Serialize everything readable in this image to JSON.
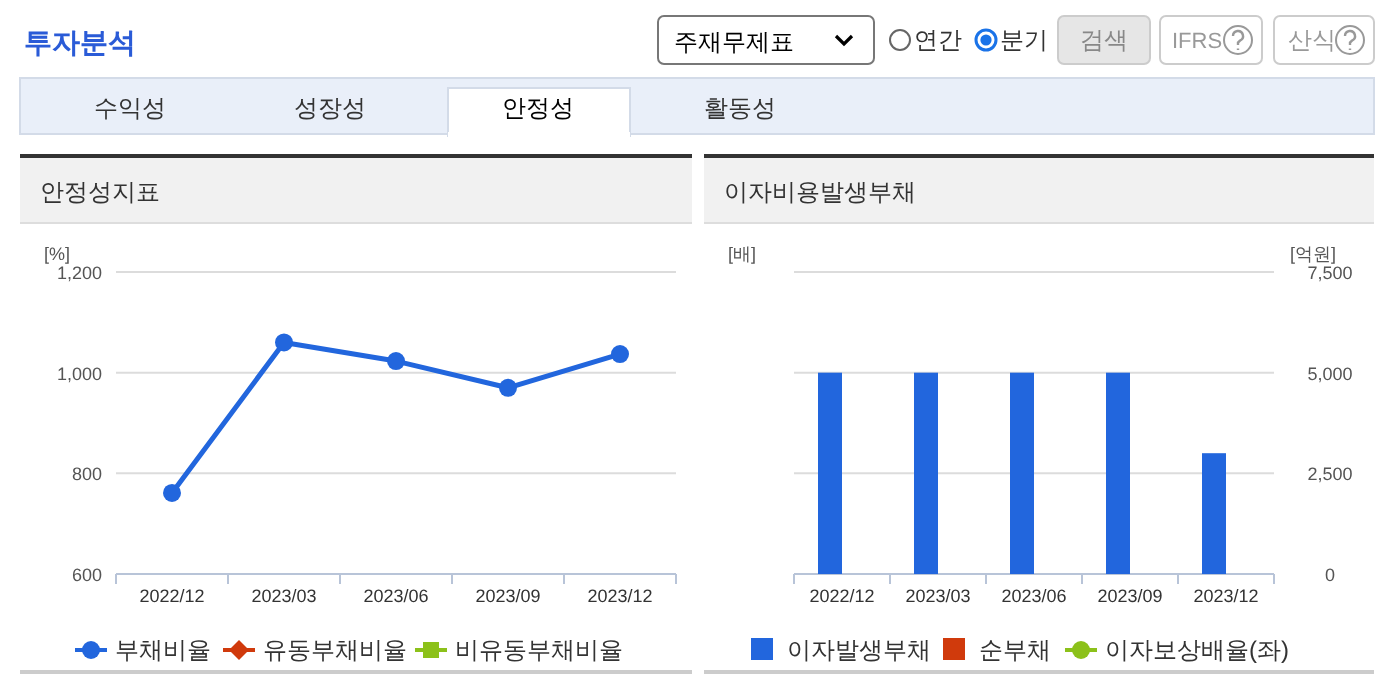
{
  "chart_data": [
    {
      "type": "line",
      "title": "안정성지표",
      "ylabel": "[%]",
      "categories": [
        "2022/12",
        "2023/03",
        "2023/06",
        "2023/09",
        "2023/12"
      ],
      "ylim": [
        600,
        1200
      ],
      "yticks": [
        600,
        800,
        {
          "value": 1000,
          "label": "1,000"
        },
        {
          "value": 1200,
          "label": "1,200"
        }
      ],
      "series": [
        {
          "name": "부채비율",
          "color": "#2266dd",
          "marker": "circle",
          "values": [
            761,
            1060,
            1023,
            970,
            1037
          ]
        },
        {
          "name": "유동부채비율",
          "color": "#d03a0c",
          "marker": "diamond",
          "values": [
            null,
            null,
            null,
            null,
            null
          ]
        },
        {
          "name": "비유동부채비율",
          "color": "#8cc11a",
          "marker": "square",
          "values": [
            null,
            null,
            null,
            null,
            null
          ]
        }
      ],
      "grid": "y",
      "legend": "bottom",
      "annotations": [
        "투자분석",
        "주재무제표",
        "연간",
        "분기",
        "검색",
        "IFRS",
        "산식",
        "수익성",
        "성장성",
        "안정성",
        "활동성"
      ]
    },
    {
      "type": "bar",
      "title": "이자비용발생부채",
      "ylabel": "[배]",
      "y2label": "[억원]",
      "categories": [
        "2022/12",
        "2023/03",
        "2023/06",
        "2023/09",
        "2023/12"
      ],
      "y2lim": [
        0,
        7500
      ],
      "y2ticks": [
        0,
        {
          "value": 2500,
          "label": "2,500"
        },
        {
          "value": 5000,
          "label": "5,000"
        },
        {
          "value": 7500,
          "label": "7,500"
        }
      ],
      "series": [
        {
          "name": "이자발생부채",
          "color": "#2266dd",
          "axis": "y2",
          "values": [
            5000,
            5000,
            5000,
            5000,
            3000
          ]
        },
        {
          "name": "순부채",
          "color": "#d03a0c",
          "axis": "y2",
          "values": [
            null,
            null,
            null,
            null,
            null
          ]
        },
        {
          "name": "이자보상배율(좌)",
          "type": "line",
          "color": "#8cc11a",
          "marker": "circle",
          "axis": "y",
          "values": [
            null,
            null,
            null,
            null,
            null
          ]
        }
      ],
      "grid": "y",
      "legend": "bottom"
    }
  ]
}
